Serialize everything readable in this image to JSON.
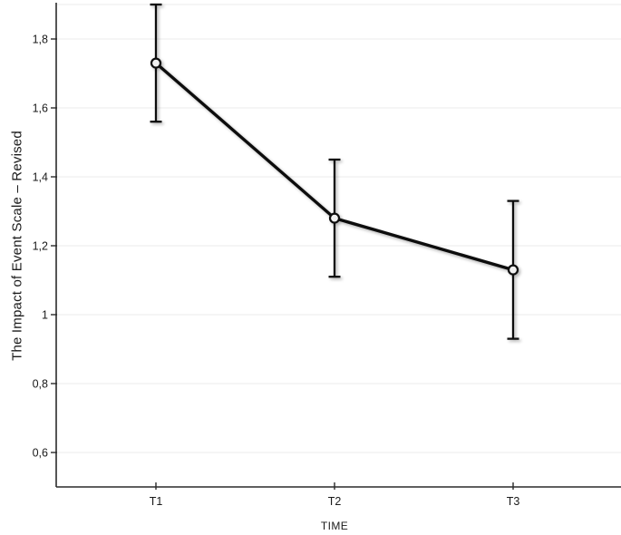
{
  "chart_data": {
    "type": "line",
    "title": "",
    "xlabel": "TIME",
    "ylabel": "The Impact of Event Scale – Revised",
    "categories": [
      "T1",
      "T2",
      "T3"
    ],
    "series": [
      {
        "name": "The Impact of Event Scale – Revised (mean)",
        "values": [
          1.73,
          1.28,
          1.13
        ],
        "error_upper": [
          1.9,
          1.45,
          1.33
        ],
        "error_lower": [
          1.56,
          1.11,
          0.93
        ]
      }
    ],
    "ylim": [
      0.5,
      1.9
    ],
    "yticks": [
      0.6,
      0.8,
      1.0,
      1.2,
      1.4,
      1.6,
      1.8
    ],
    "ytick_labels": [
      "0,6",
      "0,8",
      "1",
      "1,2",
      "1,4",
      "1,6",
      "1,8"
    ],
    "decimal_separator": ",",
    "grid": "horizontal-faint",
    "legend": "none",
    "marker": "open-circle",
    "error_bars": "capped",
    "colors": {
      "line": "#0d0d0d",
      "marker_fill": "#f0f0f0",
      "marker_stroke": "#0d0d0d",
      "axis": "#2b2b2b",
      "grid": "#f2f2f2",
      "text": "#1a1a1a",
      "background": "#ffffff"
    }
  }
}
